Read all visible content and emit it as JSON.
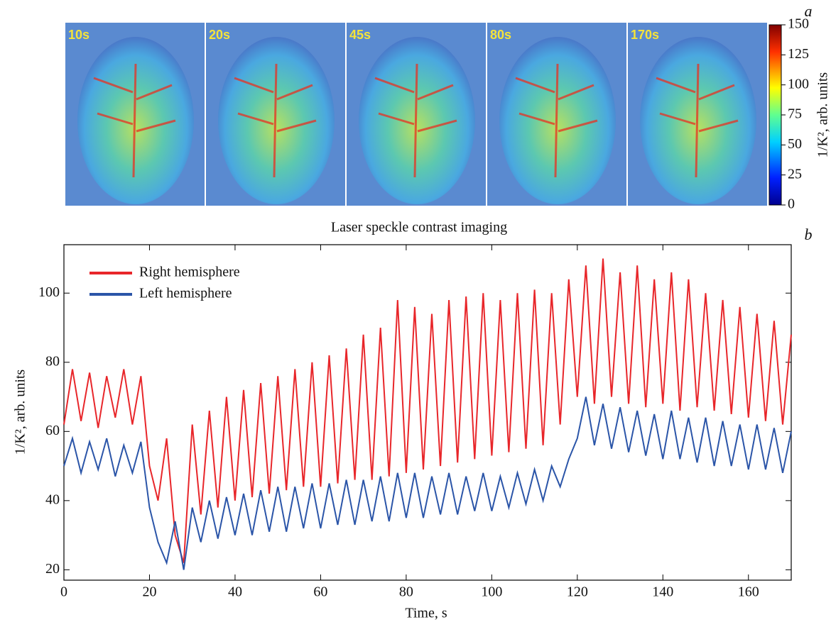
{
  "image_panel": {
    "tag": "a",
    "panel_labels": [
      "10s",
      "20s",
      "45s",
      "80s",
      "170s"
    ],
    "caption": "Laser speckle contrast imaging",
    "colorbar": {
      "lim": [
        0,
        150
      ],
      "ticks": [
        0,
        25,
        50,
        75,
        100,
        125,
        150
      ],
      "label": "1/K², arb. units"
    }
  },
  "chart_data": {
    "type": "line",
    "tag": "b",
    "xlabel": "Time, s",
    "ylabel": "1/K², arb. units",
    "xlim": [
      0,
      170
    ],
    "ylim": [
      17,
      114
    ],
    "xticks": [
      0,
      20,
      40,
      60,
      80,
      100,
      120,
      140,
      160
    ],
    "yticks": [
      20,
      40,
      60,
      80,
      100
    ],
    "legend": "upper left",
    "x": [
      0,
      2,
      4,
      6,
      8,
      10,
      12,
      14,
      16,
      18,
      20,
      22,
      24,
      26,
      28,
      30,
      32,
      34,
      36,
      38,
      40,
      42,
      44,
      46,
      48,
      50,
      52,
      54,
      56,
      58,
      60,
      62,
      64,
      66,
      68,
      70,
      72,
      74,
      76,
      78,
      80,
      82,
      84,
      86,
      88,
      90,
      92,
      94,
      96,
      98,
      100,
      102,
      104,
      106,
      108,
      110,
      112,
      114,
      116,
      118,
      120,
      122,
      124,
      126,
      128,
      130,
      132,
      134,
      136,
      138,
      140,
      142,
      144,
      146,
      148,
      150,
      152,
      154,
      156,
      158,
      160,
      162,
      164,
      166,
      168,
      170
    ],
    "series": [
      {
        "name": "Right hemisphere",
        "color": "#e8262a",
        "values": [
          62,
          78,
          63,
          77,
          61,
          76,
          64,
          78,
          62,
          76,
          50,
          40,
          58,
          30,
          22,
          62,
          36,
          66,
          38,
          70,
          40,
          72,
          41,
          74,
          42,
          76,
          43,
          78,
          44,
          80,
          44,
          82,
          45,
          84,
          46,
          88,
          46,
          90,
          47,
          98,
          48,
          96,
          49,
          94,
          50,
          98,
          51,
          99,
          52,
          100,
          53,
          98,
          54,
          100,
          55,
          101,
          56,
          100,
          62,
          104,
          70,
          108,
          68,
          110,
          70,
          106,
          68,
          108,
          67,
          104,
          68,
          106,
          66,
          104,
          67,
          100,
          66,
          98,
          65,
          96,
          64,
          94,
          63,
          92,
          62,
          88
        ]
      },
      {
        "name": "Left hemisphere",
        "color": "#2b55a8",
        "values": [
          50,
          58,
          48,
          57,
          49,
          58,
          47,
          56,
          48,
          57,
          38,
          28,
          22,
          34,
          20,
          38,
          28,
          40,
          29,
          41,
          30,
          42,
          30,
          43,
          31,
          44,
          31,
          44,
          32,
          45,
          32,
          45,
          33,
          46,
          33,
          46,
          34,
          47,
          34,
          48,
          35,
          48,
          35,
          47,
          36,
          48,
          36,
          47,
          37,
          48,
          37,
          47,
          38,
          48,
          39,
          49,
          40,
          50,
          44,
          52,
          58,
          70,
          56,
          68,
          55,
          67,
          54,
          66,
          53,
          65,
          52,
          66,
          52,
          64,
          51,
          64,
          50,
          63,
          50,
          62,
          49,
          62,
          49,
          61,
          48,
          60
        ]
      }
    ]
  }
}
